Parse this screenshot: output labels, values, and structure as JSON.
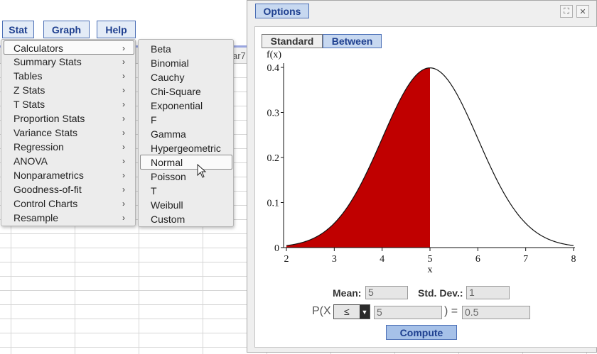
{
  "menubar": {
    "stat": "Stat",
    "graph": "Graph",
    "help": "Help"
  },
  "sheet": {
    "column_label": "ar7"
  },
  "stat_menu": {
    "items": [
      {
        "label": "Calculators"
      },
      {
        "label": "Summary Stats"
      },
      {
        "label": "Tables"
      },
      {
        "label": "Z Stats"
      },
      {
        "label": "T Stats"
      },
      {
        "label": "Proportion Stats"
      },
      {
        "label": "Variance Stats"
      },
      {
        "label": "Regression"
      },
      {
        "label": "ANOVA"
      },
      {
        "label": "Nonparametrics"
      },
      {
        "label": "Goodness-of-fit"
      },
      {
        "label": "Control Charts"
      },
      {
        "label": "Resample"
      }
    ],
    "arrow": "›"
  },
  "calculators_menu": {
    "items": [
      {
        "label": "Beta"
      },
      {
        "label": "Binomial"
      },
      {
        "label": "Cauchy"
      },
      {
        "label": "Chi-Square"
      },
      {
        "label": "Exponential"
      },
      {
        "label": "F"
      },
      {
        "label": "Gamma"
      },
      {
        "label": "Hypergeometric"
      },
      {
        "label": "Normal"
      },
      {
        "label": "Poisson"
      },
      {
        "label": "T"
      },
      {
        "label": "Weibull"
      },
      {
        "label": "Custom"
      }
    ],
    "selected": "Normal"
  },
  "options_window": {
    "title": "Options",
    "expand_icon": "⛶",
    "close_icon": "✕",
    "tabs": {
      "standard": "Standard",
      "between": "Between",
      "active": "Between"
    },
    "mean_label": "Mean:",
    "mean_value": "5",
    "sd_label": "Std. Dev.:",
    "sd_value": "1",
    "prob_prefix": "P(",
    "prob_var": "X",
    "operator": "≤",
    "x_value": "5",
    "prob_close": ") =",
    "result_value": "0.5",
    "compute_label": "Compute"
  },
  "chart_data": {
    "type": "area",
    "distribution": "normal",
    "mean": 5,
    "sd": 1,
    "xlabel": "x",
    "ylabel": "f(x)",
    "xlim": [
      2,
      8
    ],
    "ylim": [
      0,
      0.4
    ],
    "x_ticks": [
      "2",
      "3",
      "4",
      "5",
      "6",
      "7",
      "8"
    ],
    "y_ticks": [
      "0",
      "0.1",
      "0.2",
      "0.3",
      "0.4"
    ],
    "shaded_region": {
      "from": 2,
      "to": 5,
      "color": "#c00000"
    },
    "grid": false
  }
}
